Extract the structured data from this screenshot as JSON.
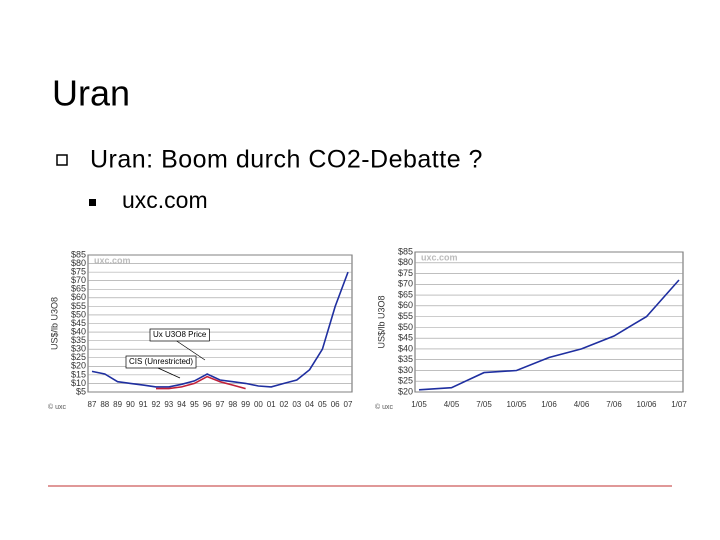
{
  "slide": {
    "title": "Uran",
    "bullets": [
      {
        "text": "Uran: Boom durch CO2-Debatte ?",
        "sub": [
          "uxc.com"
        ]
      }
    ]
  },
  "chart_data": [
    {
      "type": "line",
      "y_label": "US$/lb U3O8",
      "watermark": "uxc.com",
      "copyright": "© uxc",
      "categories": [
        "87",
        "88",
        "89",
        "90",
        "91",
        "92",
        "93",
        "94",
        "95",
        "96",
        "97",
        "98",
        "99",
        "00",
        "01",
        "02",
        "03",
        "04",
        "05",
        "06",
        "07"
      ],
      "series": [
        {
          "name": "Ux U3O8 Price",
          "color": "#1f2fa0",
          "values": [
            17,
            15.5,
            11,
            10,
            9,
            8,
            8,
            9.5,
            11.5,
            15.5,
            12,
            11,
            10,
            8.5,
            8,
            10,
            12,
            18,
            30,
            55,
            75
          ]
        },
        {
          "name": "CIS (Unrestricted)",
          "color": "#c0203a",
          "values": [
            null,
            null,
            null,
            null,
            null,
            7,
            7,
            8,
            10,
            14,
            11,
            9,
            7,
            null,
            null,
            null,
            null,
            null,
            null,
            null,
            null
          ]
        }
      ],
      "annotations": [
        "Ux U3O8 Price",
        "CIS (Unrestricted)"
      ],
      "ylim": [
        5,
        85
      ],
      "yticks": [
        {
          "value": 5,
          "label": "$5"
        },
        {
          "value": 10,
          "label": "$10"
        },
        {
          "value": 15,
          "label": "$15"
        },
        {
          "value": 20,
          "label": "$20"
        },
        {
          "value": 25,
          "label": "$25"
        },
        {
          "value": 30,
          "label": "$30"
        },
        {
          "value": 35,
          "label": "$35"
        },
        {
          "value": 40,
          "label": "$40"
        },
        {
          "value": 45,
          "label": "$45"
        },
        {
          "value": 50,
          "label": "$50"
        },
        {
          "value": 55,
          "label": "$55"
        },
        {
          "value": 60,
          "label": "$60"
        },
        {
          "value": 65,
          "label": "$65"
        },
        {
          "value": 70,
          "label": "$70"
        },
        {
          "value": 75,
          "label": "$75"
        },
        {
          "value": 80,
          "label": "$80"
        },
        {
          "value": 85,
          "label": "$85"
        }
      ],
      "grid": true
    },
    {
      "type": "line",
      "y_label": "US$/lb U3O8",
      "watermark": "uxc.com",
      "copyright": "© uxc",
      "categories": [
        "1/05",
        "4/05",
        "7/05",
        "10/05",
        "1/06",
        "4/06",
        "7/06",
        "10/06",
        "1/07"
      ],
      "series": [
        {
          "name": "Ux U3O8 Price",
          "color": "#1f2fa0",
          "values": [
            21,
            22,
            29,
            30,
            36,
            40,
            46,
            55,
            72
          ]
        }
      ],
      "annotations": [],
      "ylim": [
        20,
        85
      ],
      "yticks": [
        {
          "value": 20,
          "label": "$20"
        },
        {
          "value": 25,
          "label": "$25"
        },
        {
          "value": 30,
          "label": "$30"
        },
        {
          "value": 35,
          "label": "$35"
        },
        {
          "value": 40,
          "label": "$40"
        },
        {
          "value": 45,
          "label": "$45"
        },
        {
          "value": 50,
          "label": "$50"
        },
        {
          "value": 55,
          "label": "$55"
        },
        {
          "value": 60,
          "label": "$60"
        },
        {
          "value": 65,
          "label": "$65"
        },
        {
          "value": 70,
          "label": "$70"
        },
        {
          "value": 75,
          "label": "$75"
        },
        {
          "value": 80,
          "label": "$80"
        },
        {
          "value": 85,
          "label": "$85"
        }
      ],
      "grid": true
    }
  ]
}
